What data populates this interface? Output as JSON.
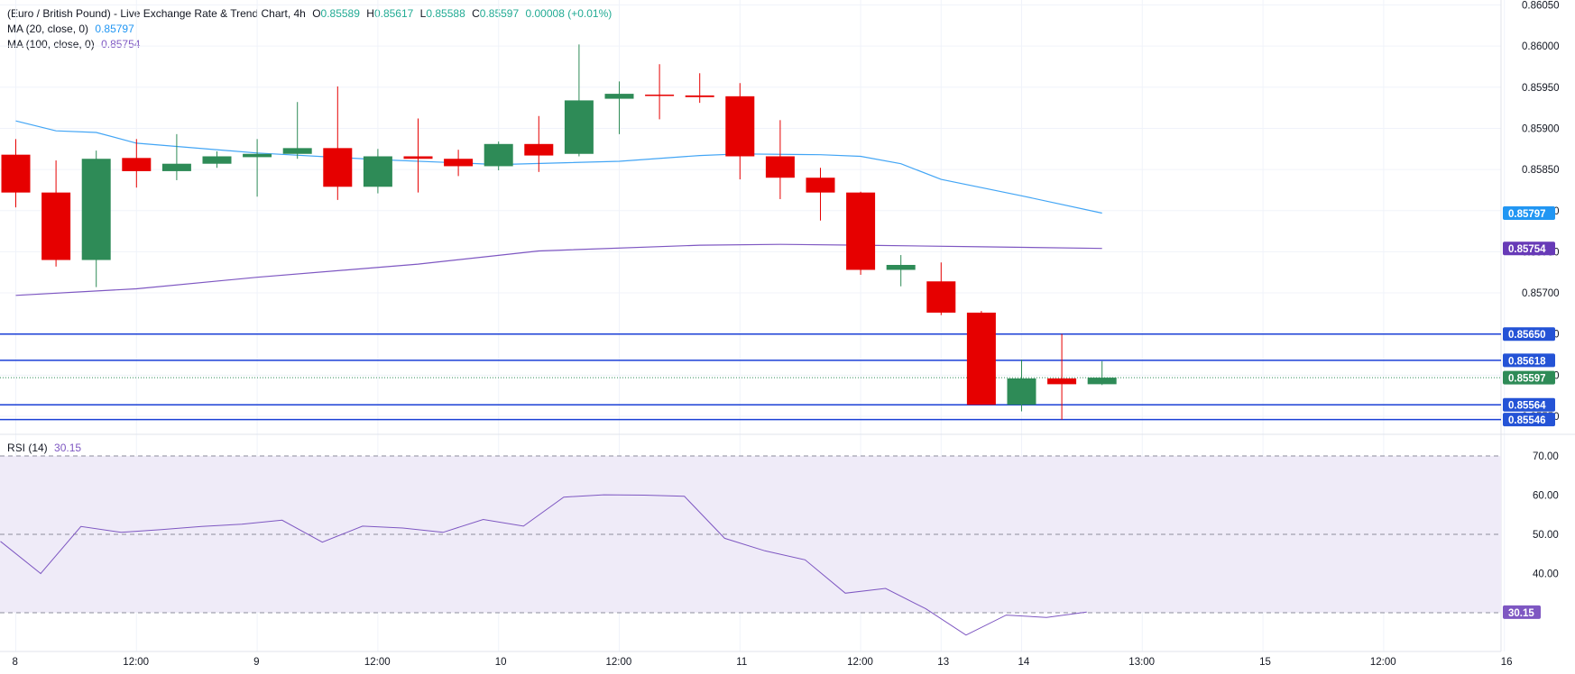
{
  "legend": {
    "title": "(Euro / British Pound) - Live Exchange Rate & Trend Chart, 4h",
    "o_label": "O",
    "o_value": "0.85589",
    "h_label": "H",
    "h_value": "0.85617",
    "l_label": "L",
    "l_value": "0.85588",
    "c_label": "C",
    "c_value": "0.85597",
    "change": "0.00008 (+0.01%)",
    "ma20_label": "MA (20, close, 0)",
    "ma20_value": "0.85797",
    "ma100_label": "MA (100, close, 0)",
    "ma100_value": "0.85754",
    "rsi_label": "RSI (14)",
    "rsi_value": "30.15"
  },
  "colors": {
    "up": "#2e8b57",
    "down": "#e60000",
    "ma20": "#42a5f5",
    "ma100": "#7e57c2",
    "level": "#1a3fd6",
    "rsi": "#7e57c2",
    "rsi_band": "#efebf8",
    "grid": "#f0f3fa",
    "last_price_line": "#2e8b57",
    "price_badge_blue": "#2453d6",
    "ma20_badge": "#2196f3",
    "ma100_badge": "#673ab7",
    "rsi_badge": "#7e57c2"
  },
  "chart_data": [
    {
      "type": "candlestick",
      "title": "(Euro / British Pound) - Live Exchange Rate & Trend Chart, 4h",
      "ylim": [
        0.8551,
        0.86055
      ],
      "y_ticks": [
        "0.86050",
        "0.86000",
        "0.85950",
        "0.85900",
        "0.85850",
        "0.85800",
        "0.85750",
        "0.85700",
        "0.85650",
        "0.85600",
        "0.85550"
      ],
      "y_tick_values": [
        0.8605,
        0.86,
        0.8595,
        0.859,
        0.8585,
        0.858,
        0.8575,
        0.857,
        0.8565,
        0.856,
        0.8555
      ],
      "x_labels": [
        "8",
        "12:00",
        "9",
        "12:00",
        "10",
        "12:00",
        "11",
        "12:00",
        "13",
        "14",
        "13:00",
        "15",
        "12:00",
        "16"
      ],
      "x_label_bars": [
        0,
        3,
        6,
        9,
        12,
        15,
        18,
        21,
        23,
        25,
        28,
        31,
        34,
        37
      ],
      "candles": [
        {
          "o": 0.85868,
          "h": 0.85887,
          "l": 0.85804,
          "c": 0.85822
        },
        {
          "o": 0.85822,
          "h": 0.85861,
          "l": 0.85732,
          "c": 0.8574
        },
        {
          "o": 0.8574,
          "h": 0.85873,
          "l": 0.85707,
          "c": 0.85863
        },
        {
          "o": 0.85864,
          "h": 0.85887,
          "l": 0.85828,
          "c": 0.85848
        },
        {
          "o": 0.85848,
          "h": 0.85893,
          "l": 0.85837,
          "c": 0.85857
        },
        {
          "o": 0.85857,
          "h": 0.85872,
          "l": 0.85852,
          "c": 0.85866
        },
        {
          "o": 0.85865,
          "h": 0.85887,
          "l": 0.85817,
          "c": 0.85869
        },
        {
          "o": 0.85869,
          "h": 0.85932,
          "l": 0.85863,
          "c": 0.85876
        },
        {
          "o": 0.85876,
          "h": 0.85951,
          "l": 0.85813,
          "c": 0.85829
        },
        {
          "o": 0.85829,
          "h": 0.85875,
          "l": 0.85821,
          "c": 0.85866
        },
        {
          "o": 0.85866,
          "h": 0.85912,
          "l": 0.85822,
          "c": 0.85863
        },
        {
          "o": 0.85863,
          "h": 0.85874,
          "l": 0.85842,
          "c": 0.85854
        },
        {
          "o": 0.85854,
          "h": 0.85884,
          "l": 0.85849,
          "c": 0.85881
        },
        {
          "o": 0.85881,
          "h": 0.85915,
          "l": 0.85847,
          "c": 0.85867
        },
        {
          "o": 0.85869,
          "h": 0.86002,
          "l": 0.85866,
          "c": 0.85934
        },
        {
          "o": 0.85936,
          "h": 0.85957,
          "l": 0.85893,
          "c": 0.85942
        },
        {
          "o": 0.85941,
          "h": 0.85978,
          "l": 0.85911,
          "c": 0.8594
        },
        {
          "o": 0.8594,
          "h": 0.85967,
          "l": 0.85931,
          "c": 0.85938
        },
        {
          "o": 0.85939,
          "h": 0.85955,
          "l": 0.85838,
          "c": 0.85866
        },
        {
          "o": 0.85866,
          "h": 0.8591,
          "l": 0.85814,
          "c": 0.8584
        },
        {
          "o": 0.8584,
          "h": 0.85852,
          "l": 0.85788,
          "c": 0.85822
        },
        {
          "o": 0.85822,
          "h": 0.85823,
          "l": 0.85722,
          "c": 0.85728
        },
        {
          "o": 0.85728,
          "h": 0.85746,
          "l": 0.85708,
          "c": 0.85734
        },
        {
          "o": 0.85714,
          "h": 0.85737,
          "l": 0.85673,
          "c": 0.85676
        },
        {
          "o": 0.85676,
          "h": 0.85678,
          "l": 0.85564,
          "c": 0.85564
        },
        {
          "o": 0.85564,
          "h": 0.85619,
          "l": 0.85556,
          "c": 0.85596
        },
        {
          "o": 0.85596,
          "h": 0.8565,
          "l": 0.85546,
          "c": 0.85589
        },
        {
          "o": 0.85589,
          "h": 0.85617,
          "l": 0.85588,
          "c": 0.85597
        }
      ],
      "ma20": [
        [
          0,
          0.85909
        ],
        [
          1,
          0.85897
        ],
        [
          2,
          0.85895
        ],
        [
          3,
          0.85882
        ],
        [
          6,
          0.8587
        ],
        [
          9,
          0.85862
        ],
        [
          12,
          0.85856
        ],
        [
          15,
          0.8586
        ],
        [
          17,
          0.85867
        ],
        [
          18,
          0.85869
        ],
        [
          20,
          0.85868
        ],
        [
          21,
          0.85866
        ],
        [
          22,
          0.85857
        ],
        [
          23,
          0.85838
        ],
        [
          25,
          0.85818
        ],
        [
          27,
          0.85797
        ]
      ],
      "ma100": [
        [
          0,
          0.85697
        ],
        [
          3,
          0.85705
        ],
        [
          6,
          0.85719
        ],
        [
          10,
          0.85735
        ],
        [
          13,
          0.85751
        ],
        [
          17,
          0.85758
        ],
        [
          19,
          0.85759
        ],
        [
          21,
          0.85758
        ],
        [
          24,
          0.85756
        ],
        [
          27,
          0.85754
        ]
      ],
      "levels": [
        0.8565,
        0.85618,
        0.85564,
        0.85546
      ],
      "last_price": 0.85597,
      "axis_badges": [
        {
          "text": "0.85797",
          "value": 0.85797,
          "color": "ma20"
        },
        {
          "text": "0.85754",
          "value": 0.85754,
          "color": "ma100"
        },
        {
          "text": "0.85650",
          "value": 0.8565,
          "color": "level"
        },
        {
          "text": "0.85618",
          "value": 0.85618,
          "color": "level"
        },
        {
          "text": "0.85597",
          "value": 0.85597,
          "color": "last"
        },
        {
          "text": "0.85564",
          "value": 0.85564,
          "color": "level"
        },
        {
          "text": "0.85546",
          "value": 0.85546,
          "color": "level"
        }
      ]
    },
    {
      "type": "line",
      "title": "RSI (14)",
      "ylim": [
        22,
        75
      ],
      "y_ticks": [
        "70.00",
        "60.00",
        "50.00",
        "40.00"
      ],
      "y_tick_values": [
        70,
        60,
        50,
        40
      ],
      "band": [
        30,
        70
      ],
      "dashed": [
        70,
        50,
        30
      ],
      "last_value": 30.15,
      "values": [
        48.2,
        40.0,
        52.0,
        50.5,
        51.2,
        52.0,
        52.6,
        53.6,
        48.0,
        52.1,
        51.6,
        50.5,
        53.8,
        52.1,
        59.5,
        60.1,
        60.0,
        59.7,
        49.0,
        45.8,
        43.5,
        35.0,
        36.2,
        31.0,
        24.3,
        29.4,
        28.8,
        30.15
      ],
      "rsi_x_offset": -1
    }
  ]
}
